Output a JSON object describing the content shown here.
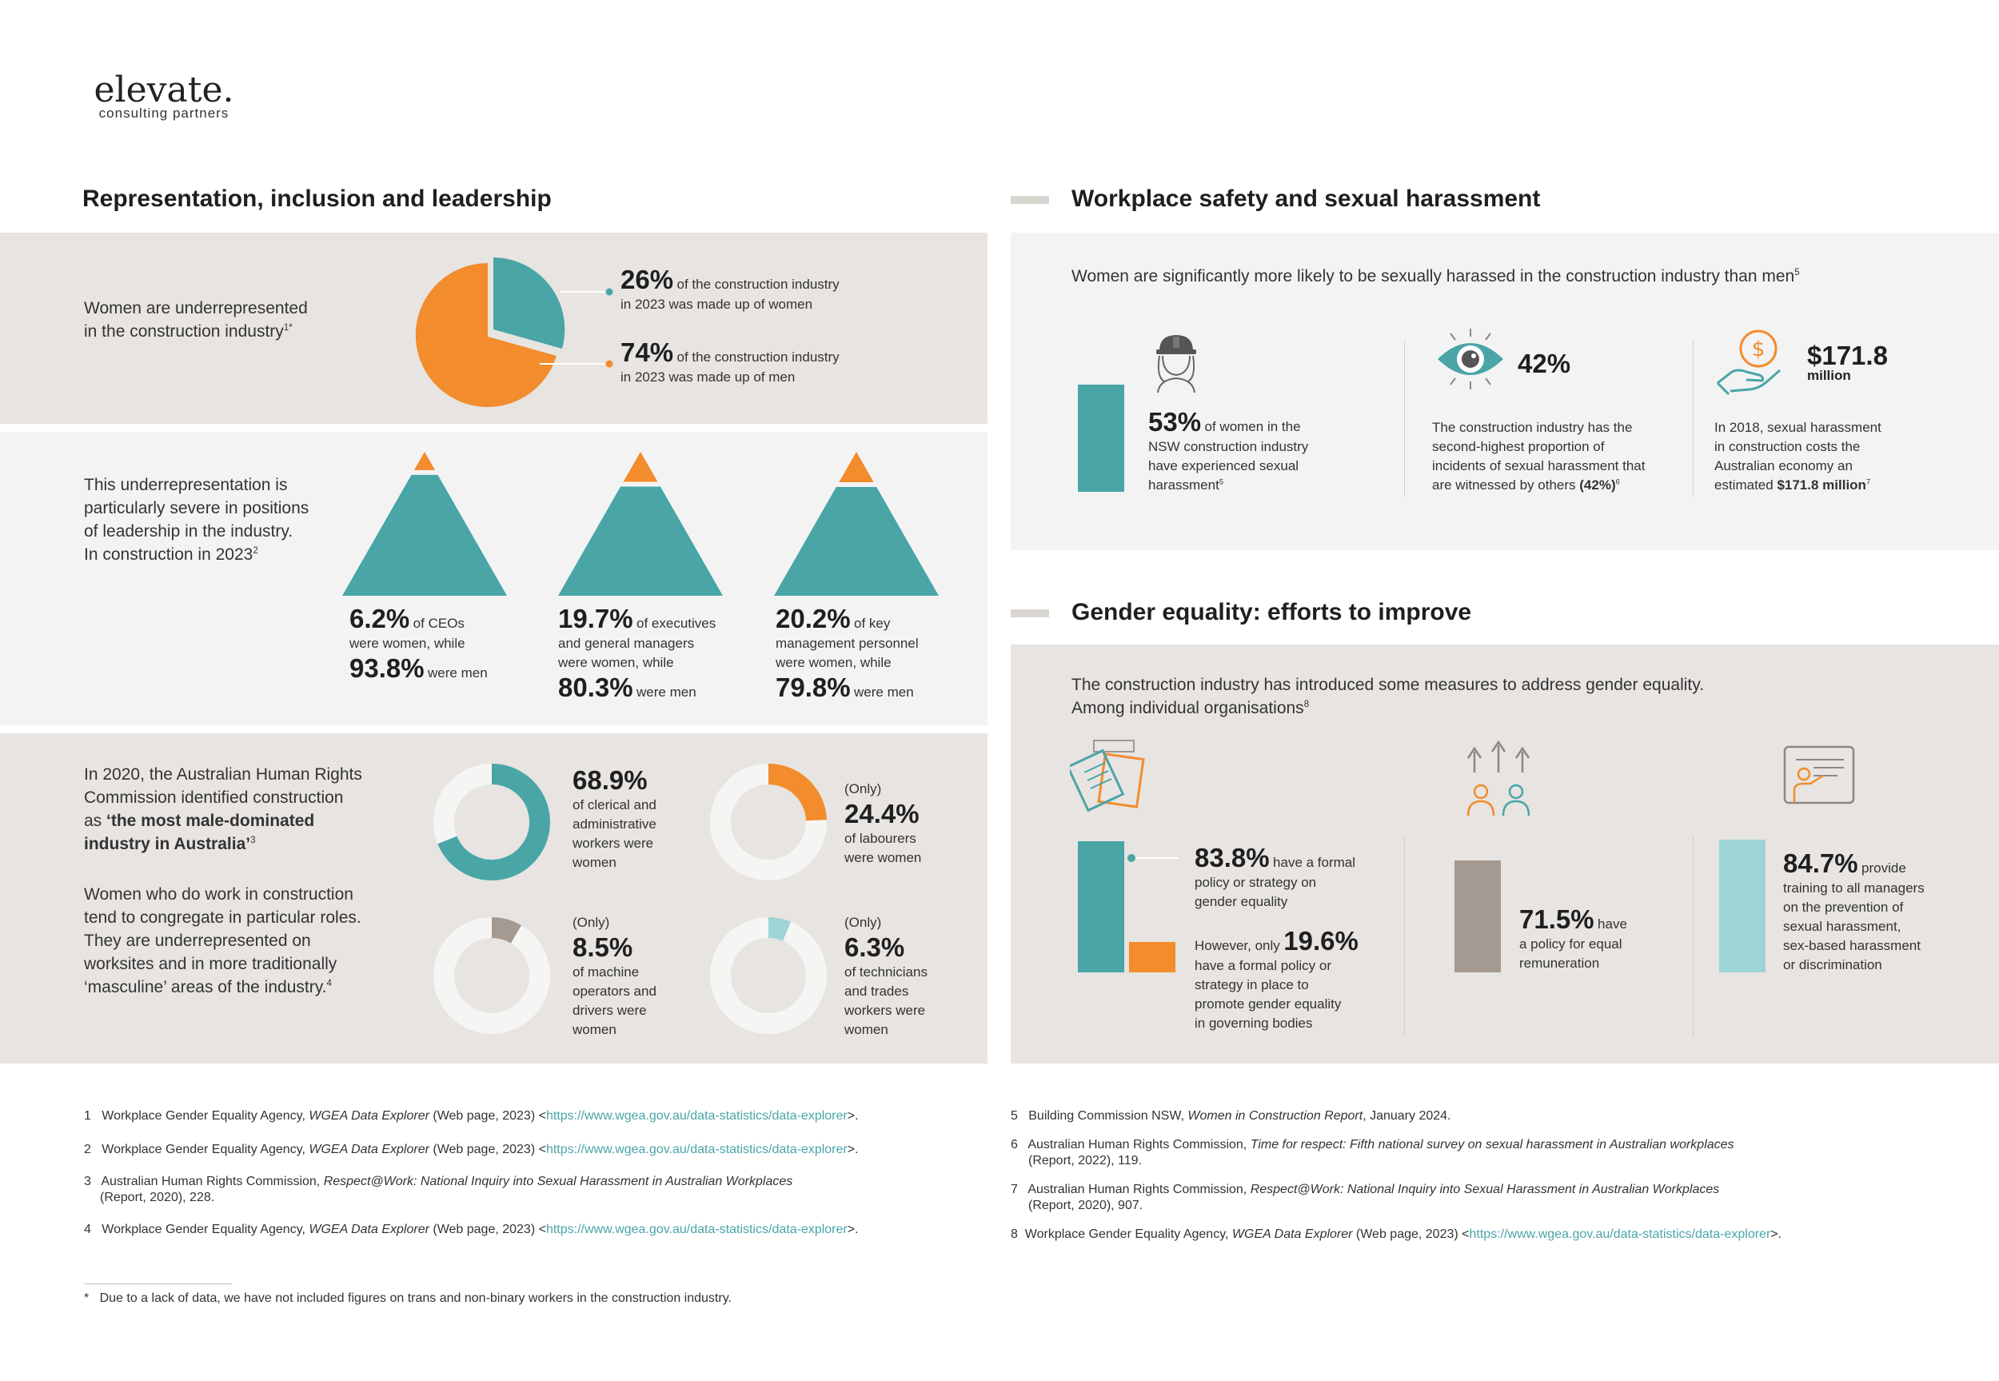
{
  "logo": {
    "word": "elevate.",
    "tagline": "consulting partners"
  },
  "colors": {
    "teal": "#4aa5a7",
    "orange": "#f28c2c",
    "panel_dark": "#e7e4e1",
    "panel_light": "#f3f3f3",
    "taupe": "#a49a91",
    "light_teal": "#9fd4d5"
  },
  "left": {
    "title": "Representation, inclusion and leadership",
    "pie": {
      "text_line1": "Women are underrepresented",
      "text_line2": "in the construction industry",
      "text_sup": "1*",
      "women_pct": "26%",
      "women_desc1": "of the construction industry",
      "women_desc2": "in 2023 was made up of women",
      "men_pct": "74%",
      "men_desc1": "of the construction industry",
      "men_desc2": "in 2023 was made up of men"
    },
    "leadership": {
      "text_l1": "This underrepresentation is",
      "text_l2": "particularly severe in positions",
      "text_l3": "of leadership in the industry.",
      "text_l4": "In construction in 2023",
      "text_sup": "2",
      "items": [
        {
          "pct": "6.2%",
          "desc1": "of CEOs",
          "desc2": "were women, while",
          "desc3": "",
          "men_pct": "93.8%",
          "men_label": "were men",
          "women_value": 6.2
        },
        {
          "pct": "19.7%",
          "desc1": "of executives",
          "desc2": "and general managers",
          "desc3": "were women, while",
          "men_pct": "80.3%",
          "men_label": "were men",
          "women_value": 19.7
        },
        {
          "pct": "20.2%",
          "desc1": "of key",
          "desc2": "management personnel",
          "desc3": "were women, while",
          "men_pct": "79.8%",
          "men_label": "were men",
          "women_value": 20.2
        }
      ]
    },
    "roles": {
      "p1_l1": "In 2020, the Australian Human Rights",
      "p1_l2": "Commission identified construction",
      "p1_l3a": "as ",
      "p1_l3b": "‘the most male-dominated",
      "p1_l4": "industry in Australia’",
      "p1_sup": "3",
      "p2_l1": "Women who do work in construction",
      "p2_l2": "tend to congregate in particular roles.",
      "p2_l3": "They are underrepresented on",
      "p2_l4": "worksites and in more traditionally",
      "p2_l5": "‘masculine’ areas of the industry.",
      "p2_sup": "4",
      "donuts": [
        {
          "prefix": "",
          "pct": "68.9%",
          "value": 68.9,
          "l1": "of clerical and",
          "l2": "administrative",
          "l3": "workers were",
          "l4": "women",
          "color": "#4aa5a7"
        },
        {
          "prefix": "(Only)",
          "pct": "24.4%",
          "value": 24.4,
          "l1": "of labourers",
          "l2": "were women",
          "l3": "",
          "l4": "",
          "color": "#f28c2c"
        },
        {
          "prefix": "(Only)",
          "pct": "8.5%",
          "value": 8.5,
          "l1": "of machine",
          "l2": "operators and",
          "l3": "drivers were",
          "l4": "women",
          "color": "#a49a91"
        },
        {
          "prefix": "(Only)",
          "pct": "6.3%",
          "value": 6.3,
          "l1": "of technicians",
          "l2": "and trades",
          "l3": "workers were",
          "l4": "women",
          "color": "#9fd4d5"
        }
      ]
    }
  },
  "safety": {
    "title": "Workplace safety and sexual harassment",
    "intro": "Women are significantly more likely to be sexually harassed in the construction industry than men",
    "intro_sup": "5",
    "s1_pct": "53%",
    "s1_value": 53,
    "s1_l1": "of women in the",
    "s1_l2": "NSW construction industry",
    "s1_l3": "have experienced sexual",
    "s1_l4": "harassment",
    "s1_sup": "5",
    "s2_pct": "42%",
    "s2_l1": "The construction industry has the",
    "s2_l2": "second-highest proportion of",
    "s2_l3": "incidents of sexual harassment that",
    "s2_l4a": "are witnessed by others ",
    "s2_l4b": "(42%)",
    "s2_sup": "6",
    "s3_amount": "$171.8",
    "s3_unit": "million",
    "s3_l1": "In 2018, sexual harassment",
    "s3_l2": "in construction costs the",
    "s3_l3": "Australian economy an",
    "s3_l4a": "estimated ",
    "s3_l4b": "$171.8 million",
    "s3_sup": "7"
  },
  "equality": {
    "title": "Gender equality: efforts to improve",
    "intro1": "The construction industry has introduced some measures to address gender equality.",
    "intro2": "Among individual organisations",
    "intro_sup": "8",
    "e1_pct": "83.8%",
    "e1_value": 83.8,
    "e1_l1": "have a formal",
    "e1_l2": "policy or strategy on",
    "e1_l3": "gender equality",
    "e1b_prefix": "However, only",
    "e1b_pct": "19.6%",
    "e1b_value": 19.6,
    "e1b_l1": "have a formal policy or",
    "e1b_l2": "strategy in place to",
    "e1b_l3": "promote gender equality",
    "e1b_l4": "in governing bodies",
    "e2_pct": "71.5%",
    "e2_value": 71.5,
    "e2_suffix": "have",
    "e2_l1": "a policy for equal",
    "e2_l2": "remuneration",
    "e3_pct": "84.7%",
    "e3_value": 84.7,
    "e3_suffix": "provide",
    "e3_l1": "training to all managers",
    "e3_l2": "on the prevention of",
    "e3_l3": "sexual harassment,",
    "e3_l4": "sex-based harassment",
    "e3_l5": "or discrimination"
  },
  "footnotes_left": [
    {
      "n": "1",
      "pre": "Workplace Gender Equality Agency, ",
      "ital": "WGEA Data Explorer",
      "post": " (Web page, 2023) <",
      "link": "https://www.wgea.gov.au/data-statistics/data-explorer",
      "end": ">.",
      "l2": ""
    },
    {
      "n": "2",
      "pre": "Workplace Gender Equality Agency, ",
      "ital": "WGEA Data Explorer",
      "post": " (Web page, 2023) <",
      "link": "https://www.wgea.gov.au/data-statistics/data-explorer",
      "end": ">.",
      "l2": ""
    },
    {
      "n": "3",
      "pre": "Australian Human Rights Commission, ",
      "ital": "Respect@Work: National Inquiry into Sexual Harassment in Australian Workplaces",
      "post": "",
      "link": "",
      "end": "",
      "l2": "(Report, 2020), 228."
    },
    {
      "n": "4",
      "pre": "Workplace Gender Equality Agency, ",
      "ital": "WGEA Data Explorer",
      "post": " (Web page, 2023) <",
      "link": "https://www.wgea.gov.au/data-statistics/data-explorer",
      "end": ">.",
      "l2": ""
    }
  ],
  "footnotes_right": [
    {
      "n": "5",
      "pre": "Building Commission NSW, ",
      "ital": "Women in Construction Report",
      "post": ",  January 2024.",
      "link": "",
      "end": "",
      "l2": ""
    },
    {
      "n": "6",
      "pre": "Australian Human Rights Commission, ",
      "ital": "Time for respect: Fifth national survey on sexual harassment in Australian workplaces",
      "post": "",
      "link": "",
      "end": "",
      "l2": "(Report, 2022), 119."
    },
    {
      "n": "7",
      "pre": "Australian Human Rights Commission, ",
      "ital": "Respect@Work: National Inquiry into Sexual Harassment in Australian Workplaces",
      "post": "",
      "link": "",
      "end": "",
      "l2": "(Report, 2020), 907."
    },
    {
      "n": "8",
      "pre": "Workplace Gender Equality Agency, ",
      "ital": "WGEA Data Explorer",
      "post": " (Web page, 2023) <",
      "link": "https://www.wgea.gov.au/data-statistics/data-explorer",
      "end": ">.",
      "l2": ""
    }
  ],
  "asterisk_note": {
    "mark": "*",
    "text": "Due to a lack of data, we have not included figures on trans and non-binary workers in the construction industry."
  }
}
